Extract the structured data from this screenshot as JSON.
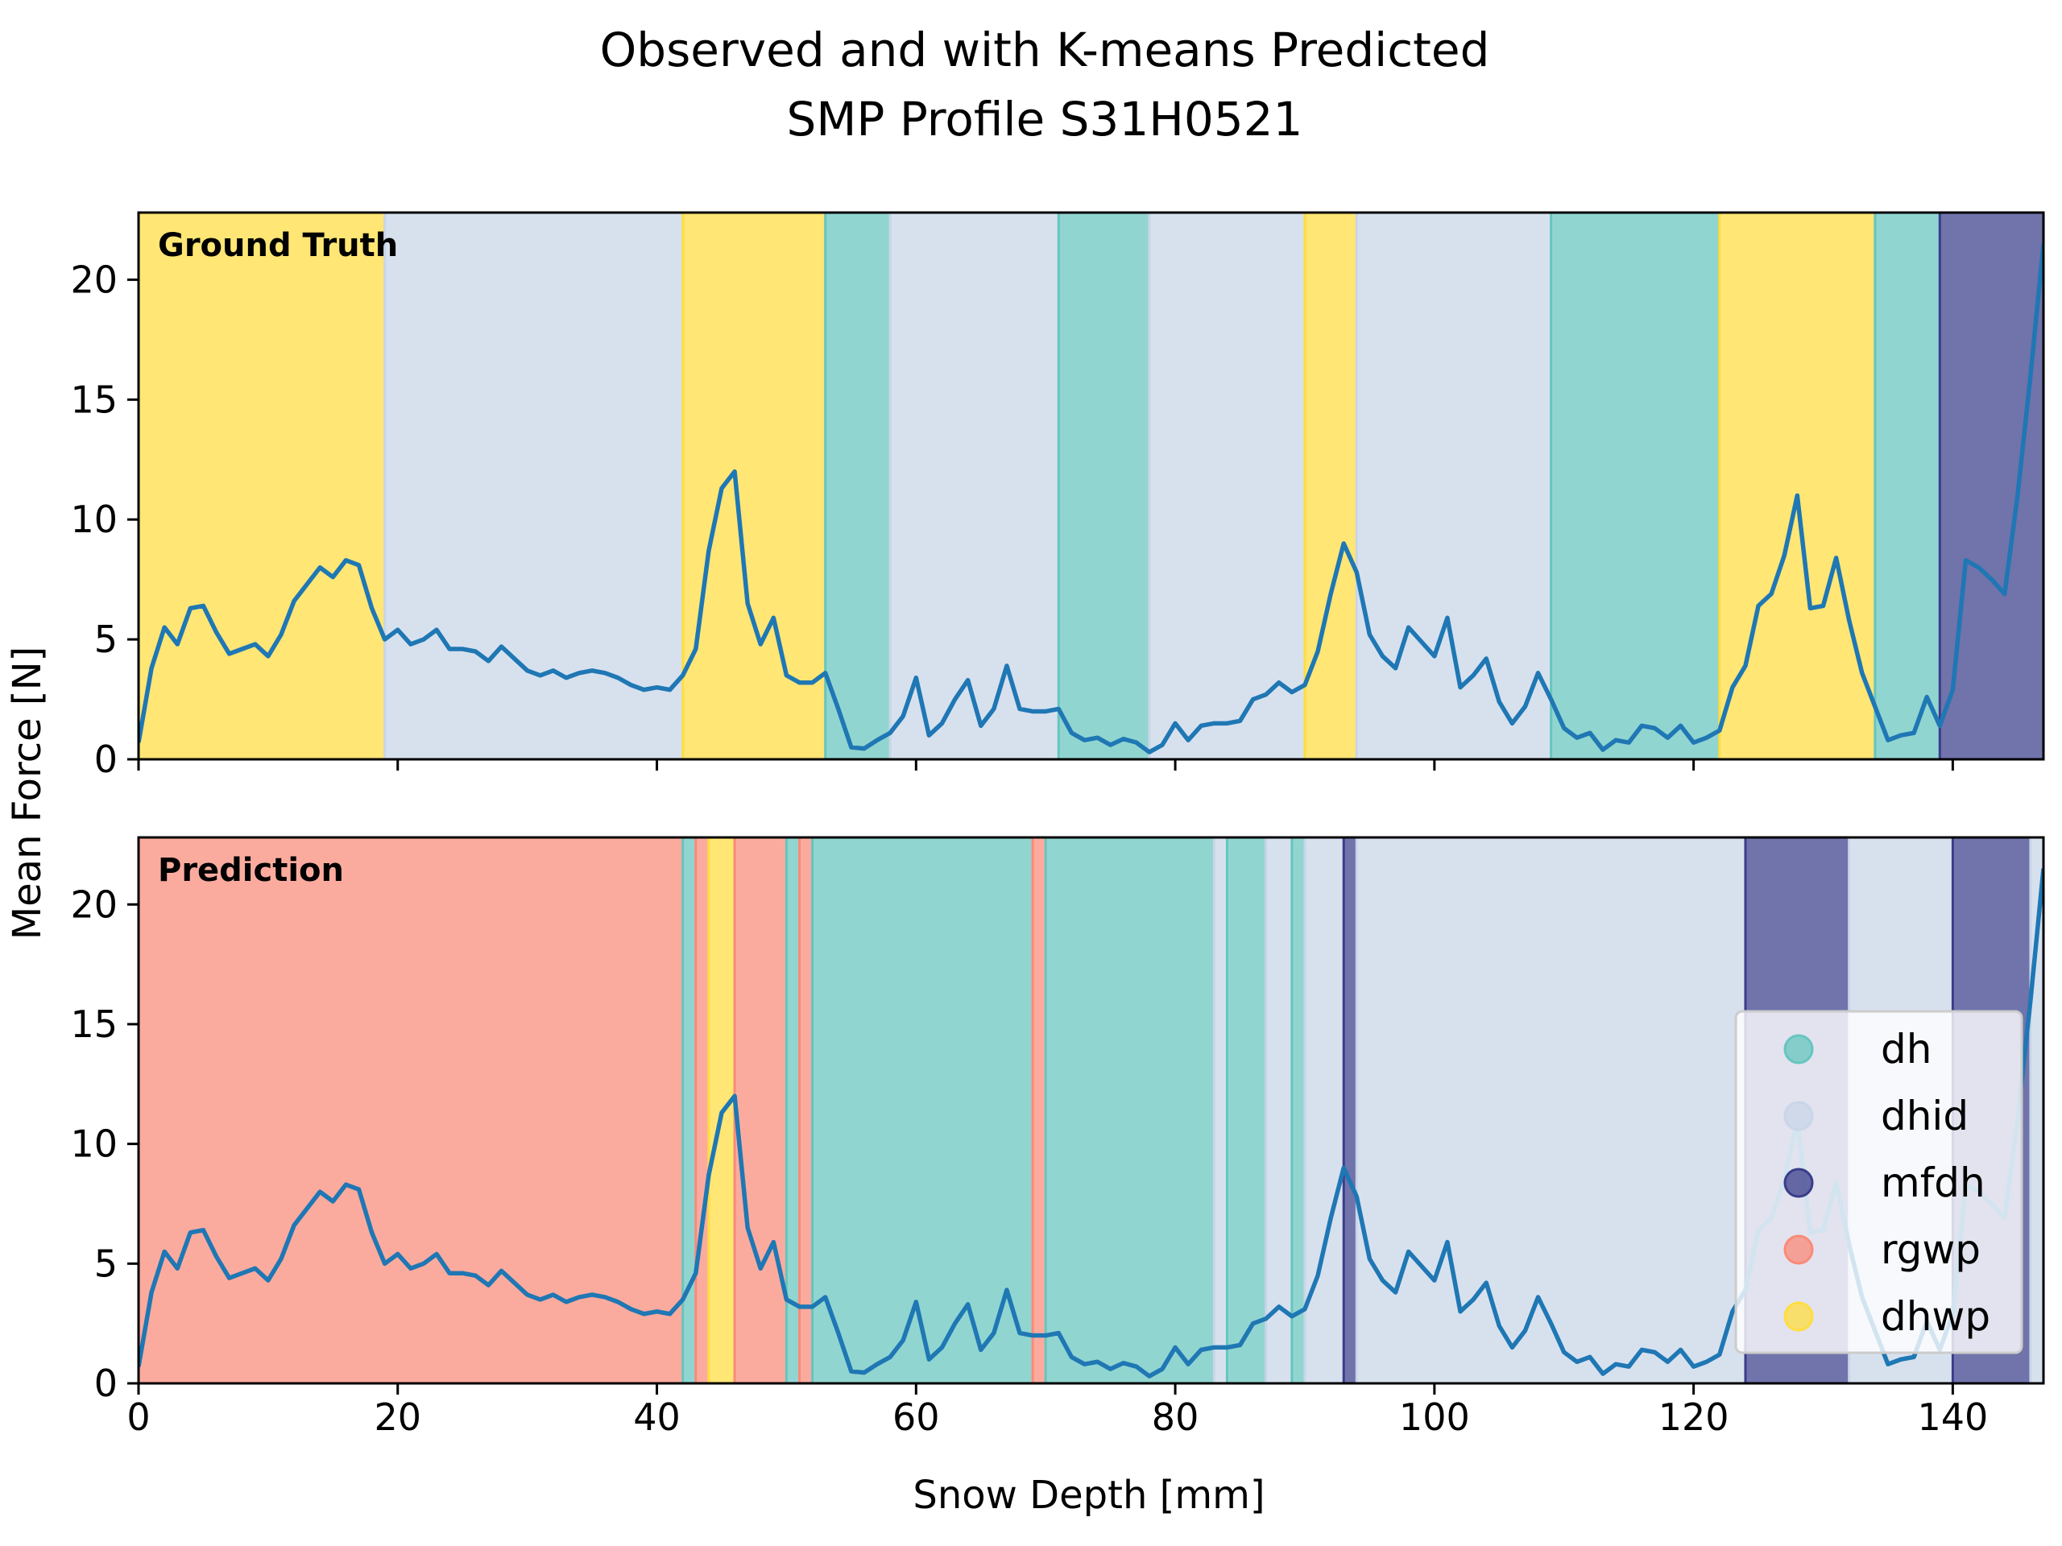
{
  "chart_data": {
    "type": "line",
    "title_lines": [
      "Observed and with K-means Predicted",
      "SMP Profile S31H0521"
    ],
    "xlabel": "Snow Depth [mm]",
    "ylabel": "Mean Force [N]",
    "xlim": [
      0,
      147
    ],
    "ylim": [
      0,
      22.8
    ],
    "xticks": [
      0,
      20,
      40,
      60,
      80,
      100,
      120,
      140
    ],
    "yticks": [
      0,
      5,
      10,
      15,
      20
    ],
    "line_color": "#1f77b4",
    "classes": [
      {
        "name": "dh",
        "color": "#66c5bf"
      },
      {
        "name": "dhid",
        "color": "#c8d6e8"
      },
      {
        "name": "mfdh",
        "color": "#3a3d8a"
      },
      {
        "name": "rgwp",
        "color": "#fa8a78"
      },
      {
        "name": "dhwp",
        "color": "#ffdd40"
      }
    ],
    "legend_position": "lower-right",
    "series": [
      {
        "x": [
          0,
          1,
          2,
          3,
          4,
          5,
          6,
          7,
          8,
          9,
          10,
          11,
          12,
          13,
          14,
          15,
          16,
          17,
          18,
          19,
          20,
          21,
          22,
          23,
          24,
          25,
          26,
          27,
          28,
          29,
          30,
          31,
          32,
          33,
          34,
          35,
          36,
          37,
          38,
          39,
          40,
          41,
          42,
          43,
          44,
          45,
          46,
          47,
          48,
          49,
          50,
          51,
          52,
          53,
          54,
          55,
          56,
          57,
          58,
          59,
          60,
          61,
          62,
          63,
          64,
          65,
          66,
          67,
          68,
          69,
          70,
          71,
          72,
          73,
          74,
          75,
          76,
          77,
          78,
          79,
          80,
          81,
          82,
          83,
          84,
          85,
          86,
          87,
          88,
          89,
          90,
          91,
          92,
          93,
          94,
          95,
          96,
          97,
          98,
          99,
          100,
          101,
          102,
          103,
          104,
          105,
          106,
          107,
          108,
          109,
          110,
          111,
          112,
          113,
          114,
          115,
          116,
          117,
          118,
          119,
          120,
          121,
          122,
          123,
          124,
          125,
          126,
          127,
          128,
          129,
          130,
          131,
          132,
          133,
          134,
          135,
          136,
          137,
          138,
          139,
          140,
          141,
          142,
          143,
          144,
          145,
          146,
          147
        ],
        "y": [
          0.7,
          3.8,
          5.5,
          4.8,
          6.3,
          6.4,
          5.3,
          4.4,
          4.6,
          4.8,
          4.3,
          5.2,
          6.6,
          7.3,
          8.0,
          7.6,
          8.3,
          8.1,
          6.3,
          5.0,
          5.4,
          4.8,
          5.0,
          5.4,
          4.6,
          4.6,
          4.5,
          4.1,
          4.7,
          4.2,
          3.7,
          3.5,
          3.7,
          3.4,
          3.6,
          3.7,
          3.6,
          3.4,
          3.1,
          2.9,
          3.0,
          2.9,
          3.5,
          4.6,
          8.7,
          11.3,
          12.0,
          6.5,
          4.8,
          5.9,
          3.5,
          3.2,
          3.2,
          3.6,
          2.1,
          0.5,
          0.45,
          0.8,
          1.1,
          1.8,
          3.4,
          1.0,
          1.5,
          2.5,
          3.3,
          1.4,
          2.1,
          3.9,
          2.1,
          2.0,
          2.0,
          2.1,
          1.1,
          0.8,
          0.9,
          0.6,
          0.85,
          0.7,
          0.3,
          0.6,
          1.5,
          0.8,
          1.4,
          1.5,
          1.5,
          1.6,
          2.5,
          2.7,
          3.2,
          2.8,
          3.1,
          4.5,
          6.9,
          9.0,
          7.8,
          5.2,
          4.3,
          3.8,
          5.5,
          4.9,
          4.3,
          5.9,
          3.0,
          3.5,
          4.2,
          2.4,
          1.5,
          2.2,
          3.6,
          2.5,
          1.3,
          0.9,
          1.1,
          0.4,
          0.8,
          0.7,
          1.4,
          1.3,
          0.9,
          1.4,
          0.7,
          0.9,
          1.2,
          3.0,
          3.9,
          6.4,
          6.9,
          8.5,
          11.0,
          6.3,
          6.4,
          8.4,
          5.8,
          3.6,
          2.2,
          0.8,
          1.0,
          1.1,
          2.6,
          1.4,
          2.9,
          8.3,
          8.0,
          7.5,
          6.9,
          11.0,
          16.0,
          21.5
        ]
      }
    ],
    "panels": [
      {
        "label": "Ground Truth",
        "segments": [
          {
            "start": 0,
            "end": 19,
            "class": "dhwp"
          },
          {
            "start": 19,
            "end": 42,
            "class": "dhid"
          },
          {
            "start": 42,
            "end": 53,
            "class": "dhwp"
          },
          {
            "start": 53,
            "end": 58,
            "class": "dh"
          },
          {
            "start": 58,
            "end": 71,
            "class": "dhid"
          },
          {
            "start": 71,
            "end": 78,
            "class": "dh"
          },
          {
            "start": 78,
            "end": 90,
            "class": "dhid"
          },
          {
            "start": 90,
            "end": 94,
            "class": "dhwp"
          },
          {
            "start": 94,
            "end": 109,
            "class": "dhid"
          },
          {
            "start": 109,
            "end": 122,
            "class": "dh"
          },
          {
            "start": 122,
            "end": 134,
            "class": "dhwp"
          },
          {
            "start": 134,
            "end": 139,
            "class": "dh"
          },
          {
            "start": 139,
            "end": 147,
            "class": "mfdh"
          }
        ]
      },
      {
        "label": "Prediction",
        "segments": [
          {
            "start": 0,
            "end": 42,
            "class": "rgwp"
          },
          {
            "start": 42,
            "end": 43,
            "class": "dh"
          },
          {
            "start": 43,
            "end": 44,
            "class": "rgwp"
          },
          {
            "start": 44,
            "end": 46,
            "class": "dhwp"
          },
          {
            "start": 46,
            "end": 50,
            "class": "rgwp"
          },
          {
            "start": 50,
            "end": 51,
            "class": "dh"
          },
          {
            "start": 51,
            "end": 52,
            "class": "rgwp"
          },
          {
            "start": 52,
            "end": 69,
            "class": "dh"
          },
          {
            "start": 69,
            "end": 70,
            "class": "rgwp"
          },
          {
            "start": 70,
            "end": 83,
            "class": "dh"
          },
          {
            "start": 83,
            "end": 84,
            "class": "dhid"
          },
          {
            "start": 84,
            "end": 87,
            "class": "dh"
          },
          {
            "start": 87,
            "end": 89,
            "class": "dhid"
          },
          {
            "start": 89,
            "end": 90,
            "class": "dh"
          },
          {
            "start": 90,
            "end": 93,
            "class": "dhid"
          },
          {
            "start": 93,
            "end": 94,
            "class": "mfdh"
          },
          {
            "start": 94,
            "end": 124,
            "class": "dhid"
          },
          {
            "start": 124,
            "end": 132,
            "class": "mfdh"
          },
          {
            "start": 132,
            "end": 140,
            "class": "dhid"
          },
          {
            "start": 140,
            "end": 146,
            "class": "mfdh"
          },
          {
            "start": 146,
            "end": 147,
            "class": "dhid"
          }
        ]
      }
    ]
  }
}
